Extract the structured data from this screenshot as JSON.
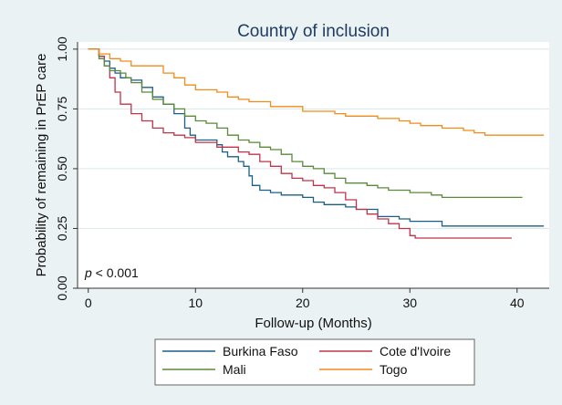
{
  "chart_data": {
    "type": "line",
    "title": "Country of inclusion",
    "xlabel": "Follow-up (Months)",
    "ylabel": "Probability of remaining in PrEP care",
    "xlim": [
      -1,
      43
    ],
    "ylim": [
      0,
      1.03
    ],
    "x_ticks": [
      0,
      10,
      20,
      30,
      40
    ],
    "x_tick_labels": [
      "0",
      "10",
      "20",
      "30",
      "40"
    ],
    "y_ticks": [
      0,
      0.25,
      0.5,
      0.75,
      1
    ],
    "y_tick_labels": [
      "0.00",
      "0.25",
      "0.50",
      "0.75",
      "1.00"
    ],
    "grid": true,
    "legend_position": "bottom",
    "annotation": {
      "italic": "p",
      "rest": " < 0.001"
    },
    "background": "#eaf2f3",
    "plot_background": "#ffffff",
    "series": [
      {
        "name": "Burkina Faso",
        "color": "#1a5f8a",
        "points": [
          [
            0,
            1
          ],
          [
            0.9,
            1
          ],
          [
            1,
            0.97
          ],
          [
            1.5,
            0.95
          ],
          [
            2,
            0.92
          ],
          [
            2.5,
            0.9
          ],
          [
            3,
            0.88
          ],
          [
            4,
            0.87
          ],
          [
            5,
            0.84
          ],
          [
            6,
            0.8
          ],
          [
            7,
            0.77
          ],
          [
            8,
            0.73
          ],
          [
            9,
            0.67
          ],
          [
            9.5,
            0.64
          ],
          [
            10,
            0.62
          ],
          [
            11,
            0.62
          ],
          [
            12,
            0.6
          ],
          [
            12.5,
            0.57
          ],
          [
            13,
            0.55
          ],
          [
            14,
            0.53
          ],
          [
            14.5,
            0.51
          ],
          [
            15,
            0.47
          ],
          [
            15.3,
            0.43
          ],
          [
            16,
            0.41
          ],
          [
            17,
            0.4
          ],
          [
            18,
            0.39
          ],
          [
            20,
            0.38
          ],
          [
            21,
            0.36
          ],
          [
            22,
            0.35
          ],
          [
            24,
            0.34
          ],
          [
            25,
            0.33
          ],
          [
            27,
            0.3
          ],
          [
            29,
            0.29
          ],
          [
            30,
            0.28
          ],
          [
            33,
            0.26
          ],
          [
            36,
            0.26
          ],
          [
            42.5,
            0.26
          ]
        ]
      },
      {
        "name": "Cote d'Ivoire",
        "color": "#c0344a",
        "points": [
          [
            0,
            1
          ],
          [
            1,
            0.97
          ],
          [
            1.5,
            0.93
          ],
          [
            2,
            0.88
          ],
          [
            2.5,
            0.82
          ],
          [
            3,
            0.77
          ],
          [
            4,
            0.73
          ],
          [
            5,
            0.7
          ],
          [
            6,
            0.67
          ],
          [
            7,
            0.65
          ],
          [
            8,
            0.64
          ],
          [
            9,
            0.63
          ],
          [
            10,
            0.61
          ],
          [
            12,
            0.59
          ],
          [
            14,
            0.57
          ],
          [
            15,
            0.56
          ],
          [
            16,
            0.53
          ],
          [
            17,
            0.51
          ],
          [
            18,
            0.48
          ],
          [
            19,
            0.46
          ],
          [
            20,
            0.45
          ],
          [
            21,
            0.43
          ],
          [
            22,
            0.42
          ],
          [
            23,
            0.4
          ],
          [
            24,
            0.37
          ],
          [
            25,
            0.33
          ],
          [
            26,
            0.31
          ],
          [
            27,
            0.29
          ],
          [
            28,
            0.27
          ],
          [
            29,
            0.25
          ],
          [
            30,
            0.22
          ],
          [
            30.5,
            0.21
          ],
          [
            35,
            0.21
          ],
          [
            39.5,
            0.21
          ]
        ]
      },
      {
        "name": "Mali",
        "color": "#5a8a3a",
        "points": [
          [
            0,
            1
          ],
          [
            1,
            0.96
          ],
          [
            1.5,
            0.93
          ],
          [
            2,
            0.91
          ],
          [
            3,
            0.9
          ],
          [
            3.5,
            0.88
          ],
          [
            4,
            0.86
          ],
          [
            5,
            0.82
          ],
          [
            6,
            0.79
          ],
          [
            7,
            0.77
          ],
          [
            8,
            0.75
          ],
          [
            9,
            0.72
          ],
          [
            10,
            0.7
          ],
          [
            11,
            0.69
          ],
          [
            12,
            0.67
          ],
          [
            13,
            0.64
          ],
          [
            14,
            0.62
          ],
          [
            15,
            0.61
          ],
          [
            16,
            0.59
          ],
          [
            17,
            0.58
          ],
          [
            18,
            0.56
          ],
          [
            19,
            0.53
          ],
          [
            20,
            0.51
          ],
          [
            21,
            0.5
          ],
          [
            22,
            0.48
          ],
          [
            23,
            0.46
          ],
          [
            24,
            0.44
          ],
          [
            26,
            0.43
          ],
          [
            27,
            0.42
          ],
          [
            28,
            0.41
          ],
          [
            30,
            0.4
          ],
          [
            32,
            0.39
          ],
          [
            33,
            0.38
          ],
          [
            40.5,
            0.38
          ]
        ]
      },
      {
        "name": "Togo",
        "color": "#f28a1c",
        "points": [
          [
            0,
            1
          ],
          [
            1,
            0.98
          ],
          [
            2,
            0.96
          ],
          [
            3,
            0.95
          ],
          [
            4,
            0.93
          ],
          [
            6,
            0.93
          ],
          [
            7,
            0.9
          ],
          [
            8,
            0.88
          ],
          [
            9,
            0.85
          ],
          [
            10,
            0.83
          ],
          [
            12,
            0.82
          ],
          [
            13,
            0.8
          ],
          [
            14,
            0.79
          ],
          [
            15,
            0.78
          ],
          [
            17,
            0.76
          ],
          [
            20,
            0.74
          ],
          [
            23,
            0.73
          ],
          [
            24,
            0.72
          ],
          [
            27,
            0.71
          ],
          [
            29,
            0.7
          ],
          [
            30,
            0.69
          ],
          [
            31,
            0.68
          ],
          [
            33,
            0.67
          ],
          [
            35,
            0.66
          ],
          [
            36,
            0.65
          ],
          [
            37,
            0.64
          ],
          [
            42.5,
            0.64
          ]
        ]
      }
    ]
  }
}
